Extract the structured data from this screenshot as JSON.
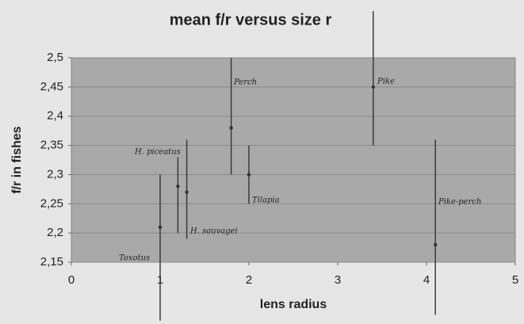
{
  "chart_data": {
    "type": "scatter",
    "title": "mean f/r versus size r",
    "x_label": "lens radius",
    "y_label": "f/r in fishes",
    "labels": [
      "Toxotus",
      "H. piceatus",
      "H. sauvagei",
      "Perch",
      "Tilapia",
      "Pike",
      "Pike-perch"
    ],
    "x": [
      1.0,
      1.2,
      1.3,
      1.8,
      2.0,
      3.4,
      4.1
    ],
    "values": [
      2.21,
      2.28,
      2.27,
      2.38,
      2.3,
      2.45,
      2.18
    ],
    "low": [
      2.05,
      2.2,
      2.19,
      2.3,
      2.25,
      2.35,
      2.06
    ],
    "high": [
      2.3,
      2.33,
      2.36,
      2.5,
      2.35,
      2.58,
      2.36
    ],
    "color": "#333333",
    "xlim": [
      0,
      5
    ],
    "xticks": [
      0,
      1,
      2,
      3,
      4,
      5
    ],
    "ylim": [
      2.15,
      2.5
    ],
    "yticks": [
      {
        "value": 2.15,
        "label": "2,15"
      },
      {
        "value": 2.2,
        "label": "2,2"
      },
      {
        "value": 2.25,
        "label": "2,25"
      },
      {
        "value": 2.3,
        "label": "2,3"
      },
      {
        "value": 2.35,
        "label": "2,35"
      },
      {
        "value": 2.4,
        "label": "2,4"
      },
      {
        "value": 2.45,
        "label": "2,45"
      },
      {
        "value": 2.5,
        "label": "2,5"
      }
    ],
    "grid": true
  }
}
